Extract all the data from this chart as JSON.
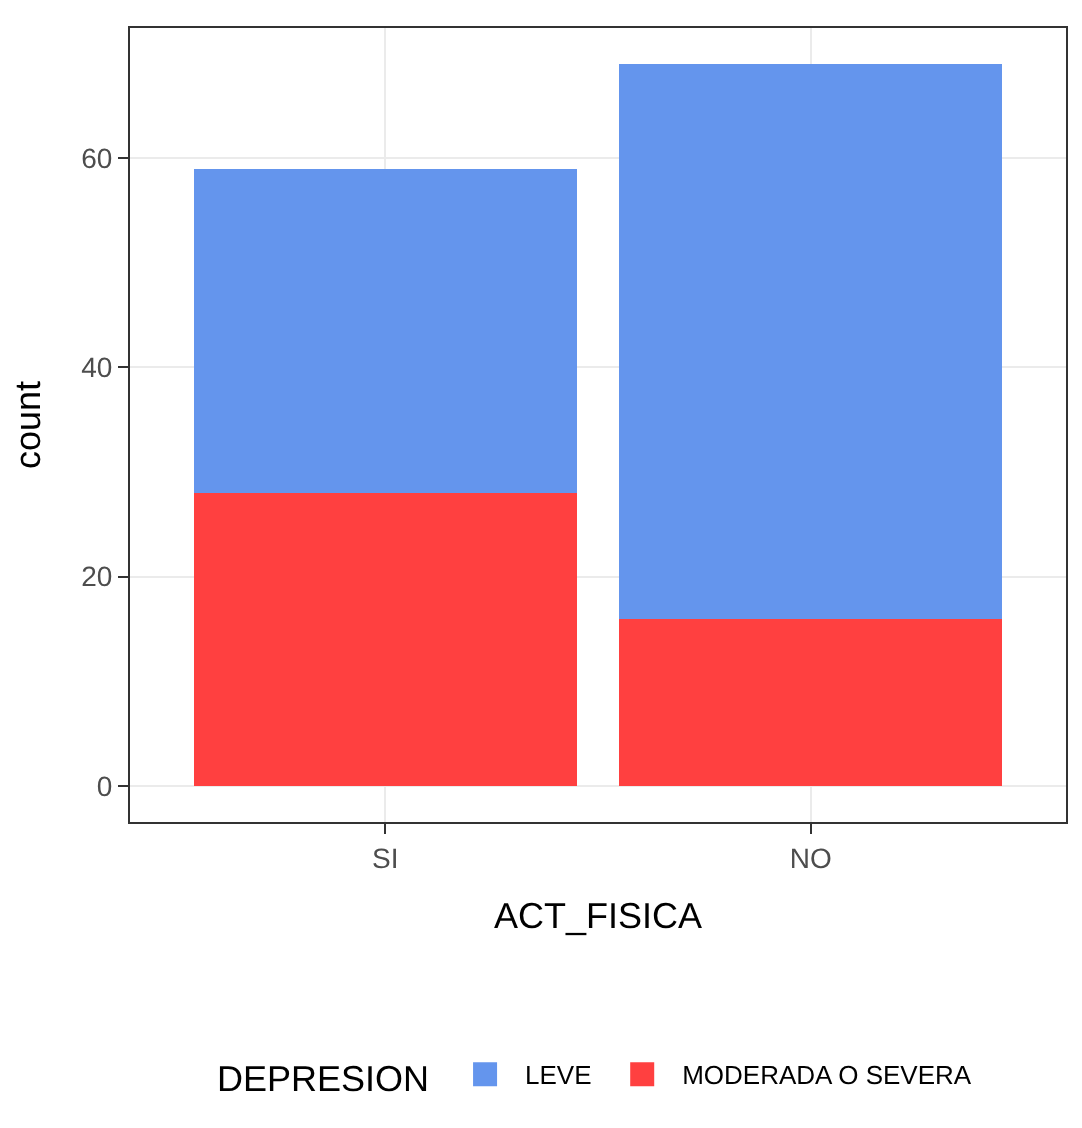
{
  "chart_data": {
    "type": "bar",
    "stacked": true,
    "xlabel": "ACT_FISICA",
    "ylabel": "count",
    "legend_title": "DEPRESION",
    "categories": [
      "SI",
      "NO"
    ],
    "series": [
      {
        "name": "MODERADA O SEVERA",
        "color": "#ff4040",
        "values": [
          28,
          16
        ]
      },
      {
        "name": "LEVE",
        "color": "#6495ed",
        "values": [
          31,
          53
        ]
      }
    ],
    "ylim": [
      -3.45,
      72.45
    ],
    "yticks": [
      0,
      20,
      40,
      60
    ],
    "grid": true,
    "legend": "bottom"
  }
}
